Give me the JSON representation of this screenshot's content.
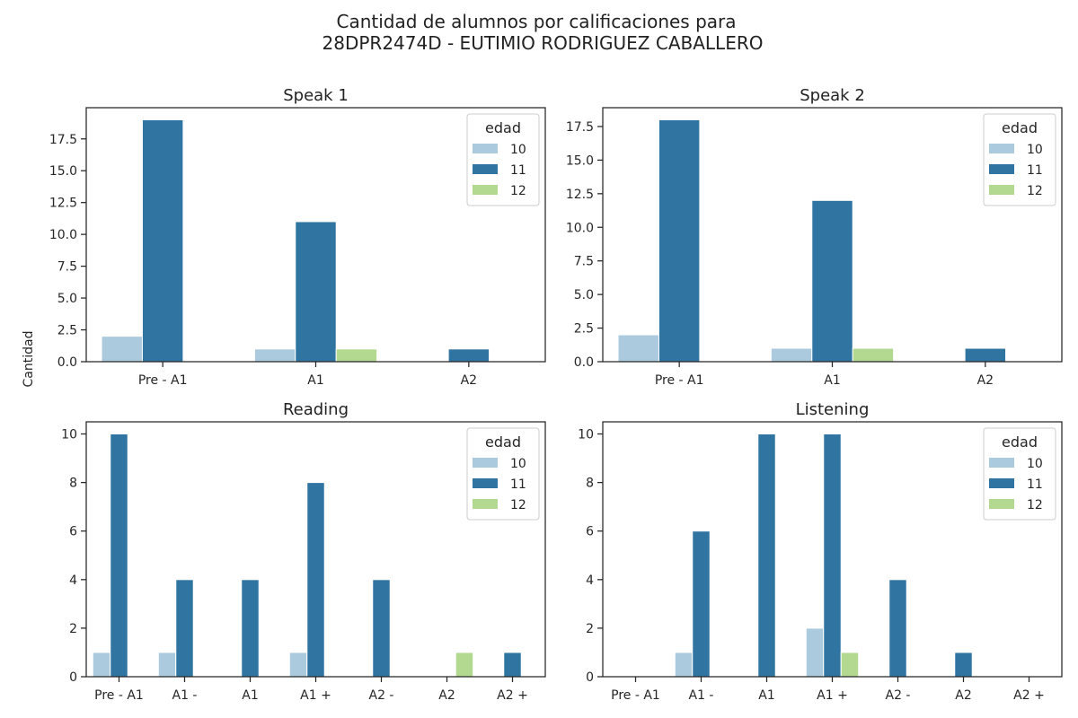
{
  "figure": {
    "title_line1": "Cantidad de alumnos por calificaciones para",
    "title_line2": "28DPR2474D - EUTIMIO RODRIGUEZ CABALLERO",
    "ylabel": "Cantidad"
  },
  "legend": {
    "title": "edad",
    "entries": [
      "10",
      "11",
      "12"
    ]
  },
  "colors": {
    "10": "#abcadd",
    "11": "#3074a2",
    "12": "#b2d98f"
  },
  "chart_data": [
    {
      "type": "bar",
      "title": "Speak 1",
      "categories": [
        "Pre - A1",
        "A1",
        "A2"
      ],
      "series": [
        {
          "name": "10",
          "values": [
            2,
            1,
            0
          ]
        },
        {
          "name": "11",
          "values": [
            19,
            11,
            1
          ]
        },
        {
          "name": "12",
          "values": [
            0,
            1,
            0
          ]
        }
      ],
      "ylim": [
        0,
        19.95
      ],
      "yticks": [
        0,
        2.5,
        5,
        7.5,
        10,
        12.5,
        15,
        17.5
      ],
      "ytick_labels": [
        "0.0",
        "2.5",
        "5.0",
        "7.5",
        "10.0",
        "12.5",
        "15.0",
        "17.5"
      ],
      "legend": "top-right"
    },
    {
      "type": "bar",
      "title": "Speak 2",
      "categories": [
        "Pre - A1",
        "A1",
        "A2"
      ],
      "series": [
        {
          "name": "10",
          "values": [
            2,
            1,
            0
          ]
        },
        {
          "name": "11",
          "values": [
            18,
            12,
            1
          ]
        },
        {
          "name": "12",
          "values": [
            0,
            1,
            0
          ]
        }
      ],
      "ylim": [
        0,
        18.9
      ],
      "yticks": [
        0,
        2.5,
        5,
        7.5,
        10,
        12.5,
        15,
        17.5
      ],
      "ytick_labels": [
        "0.0",
        "2.5",
        "5.0",
        "7.5",
        "10.0",
        "12.5",
        "15.0",
        "17.5"
      ],
      "legend": "top-right"
    },
    {
      "type": "bar",
      "title": "Reading",
      "categories": [
        "Pre - A1",
        "A1 -",
        "A1",
        "A1 +",
        "A2 -",
        "A2",
        "A2 +"
      ],
      "series": [
        {
          "name": "10",
          "values": [
            1,
            1,
            0,
            1,
            0,
            0,
            0
          ]
        },
        {
          "name": "11",
          "values": [
            10,
            4,
            4,
            8,
            4,
            0,
            1
          ]
        },
        {
          "name": "12",
          "values": [
            0,
            0,
            0,
            0,
            0,
            1,
            0
          ]
        }
      ],
      "ylim": [
        0,
        10.5
      ],
      "yticks": [
        0,
        2,
        4,
        6,
        8,
        10
      ],
      "ytick_labels": [
        "0",
        "2",
        "4",
        "6",
        "8",
        "10"
      ],
      "legend": "top-right"
    },
    {
      "type": "bar",
      "title": "Listening",
      "categories": [
        "Pre - A1",
        "A1 -",
        "A1",
        "A1 +",
        "A2 -",
        "A2",
        "A2 +"
      ],
      "series": [
        {
          "name": "10",
          "values": [
            0,
            1,
            0,
            2,
            0,
            0,
            0
          ]
        },
        {
          "name": "11",
          "values": [
            0,
            6,
            10,
            10,
            4,
            1,
            0
          ]
        },
        {
          "name": "12",
          "values": [
            0,
            0,
            0,
            1,
            0,
            0,
            0
          ]
        }
      ],
      "ylim": [
        0,
        10.5
      ],
      "yticks": [
        0,
        2,
        4,
        6,
        8,
        10
      ],
      "ytick_labels": [
        "0",
        "2",
        "4",
        "6",
        "8",
        "10"
      ],
      "legend": "top-right"
    }
  ]
}
